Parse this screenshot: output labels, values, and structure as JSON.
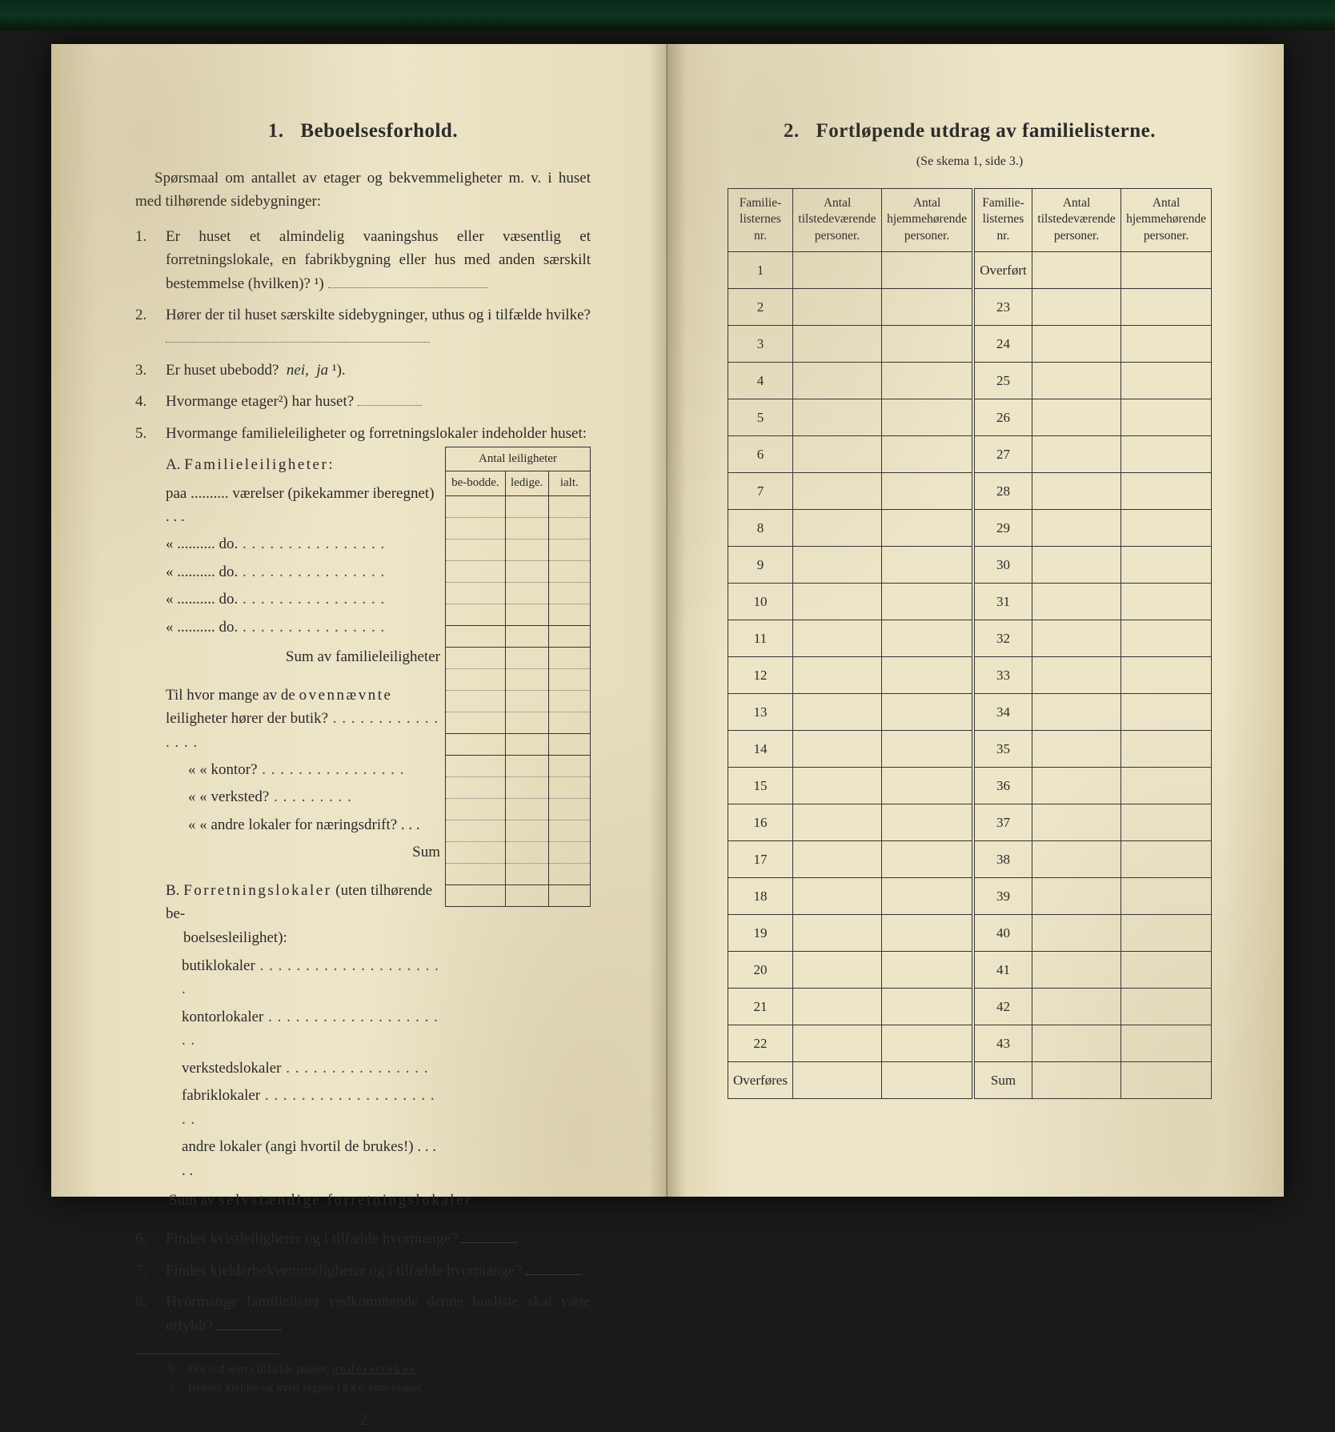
{
  "page_background": "#ede5c8",
  "text_color": "#2a2a2a",
  "left": {
    "title_num": "1.",
    "title": "Beboelsesforhold.",
    "intro": "Spørsmaal om antallet av etager og bekvemmeligheter m. v. i huset med tilhørende sidebygninger:",
    "questions": [
      {
        "n": "1.",
        "t": "Er huset et almindelig vaaningshus eller væsentlig et forretningslokale, en fabrikbygning eller hus med anden særskilt bestemmelse (hvilken)?"
      },
      {
        "n": "2.",
        "t": "Hører der til huset særskilte sidebygninger, uthus og i tilfælde hvilke?"
      },
      {
        "n": "3.",
        "t": "Er huset ubebodd?  nei,  ja"
      },
      {
        "n": "4.",
        "t": "Hvormange etager²) har huset?"
      },
      {
        "n": "5.",
        "t": "Hvormange familieleiligheter og forretningslokaler indeholder huset:"
      }
    ],
    "small_grid_header": "Antal leiligheter",
    "small_grid_cols": [
      "be-bodde.",
      "ledige.",
      "ialt."
    ],
    "sectA_title": "A. Familieleiligheter:",
    "sectA_rows": [
      "paa .......... værelser (pikekammer iberegnet)  .  .  .",
      "«    ..........      do.",
      "«    ..........      do.",
      "«    ..........      do.",
      "«    ..........      do."
    ],
    "sectA_sum": "Sum av familieleiligheter",
    "sub1_intro": "Til hvor mange av de ovennævnte leiligheter hører der butik?",
    "sub1_rows": [
      "«    «   kontor?",
      "«    «   verksted?",
      "«    «   andre lokaler for næringsdrift?   .  .  ."
    ],
    "sub1_sum": "Sum",
    "sectB_title": "B. Forretningslokaler (uten tilhørende beboelsesleilighet):",
    "sectB_rows": [
      "butiklokaler",
      "kontorlokaler",
      "verkstedslokaler",
      "fabriklokaler",
      "andre lokaler (angi hvortil de brukes!)  .  .  .  .  ."
    ],
    "sectB_sum": "Sum av selvstændige forretningslokaler",
    "q6": {
      "n": "6.",
      "t": "Findes kvistleiligheter og i tilfælde hvormange?"
    },
    "q7": {
      "n": "7.",
      "t": "Findes kjelderbekvemmeligheter og i tilfælde hvormange?"
    },
    "q8": {
      "n": "8.",
      "t": "Hvormange familielister vedkommende denne husliste skal være utfyldt?"
    },
    "footnote1": "Det ord som i tilfælde passer, understrekes.",
    "footnote2": "Beboet kjelder og kvist regnes ikke som etager.",
    "page_num": "2"
  },
  "right": {
    "title_num": "2.",
    "title": "Fortløpende utdrag av familielisterne.",
    "subtitle": "(Se skema 1, side 3.)",
    "columns": [
      "Familie-listernes nr.",
      "Antal tilstedeværende personer.",
      "Antal hjemmehørende personer.",
      "Familie-listernes nr.",
      "Antal tilstedeværende personer.",
      "Antal hjemmehørende personer."
    ],
    "left_numbers": [
      "1",
      "2",
      "3",
      "4",
      "5",
      "6",
      "7",
      "8",
      "9",
      "10",
      "11",
      "12",
      "13",
      "14",
      "15",
      "16",
      "17",
      "18",
      "19",
      "20",
      "21",
      "22"
    ],
    "right_numbers": [
      "Overført",
      "23",
      "24",
      "25",
      "26",
      "27",
      "28",
      "29",
      "30",
      "31",
      "32",
      "33",
      "34",
      "35",
      "36",
      "37",
      "38",
      "39",
      "40",
      "41",
      "42",
      "43"
    ],
    "left_last": "Overføres",
    "right_last": "Sum"
  }
}
